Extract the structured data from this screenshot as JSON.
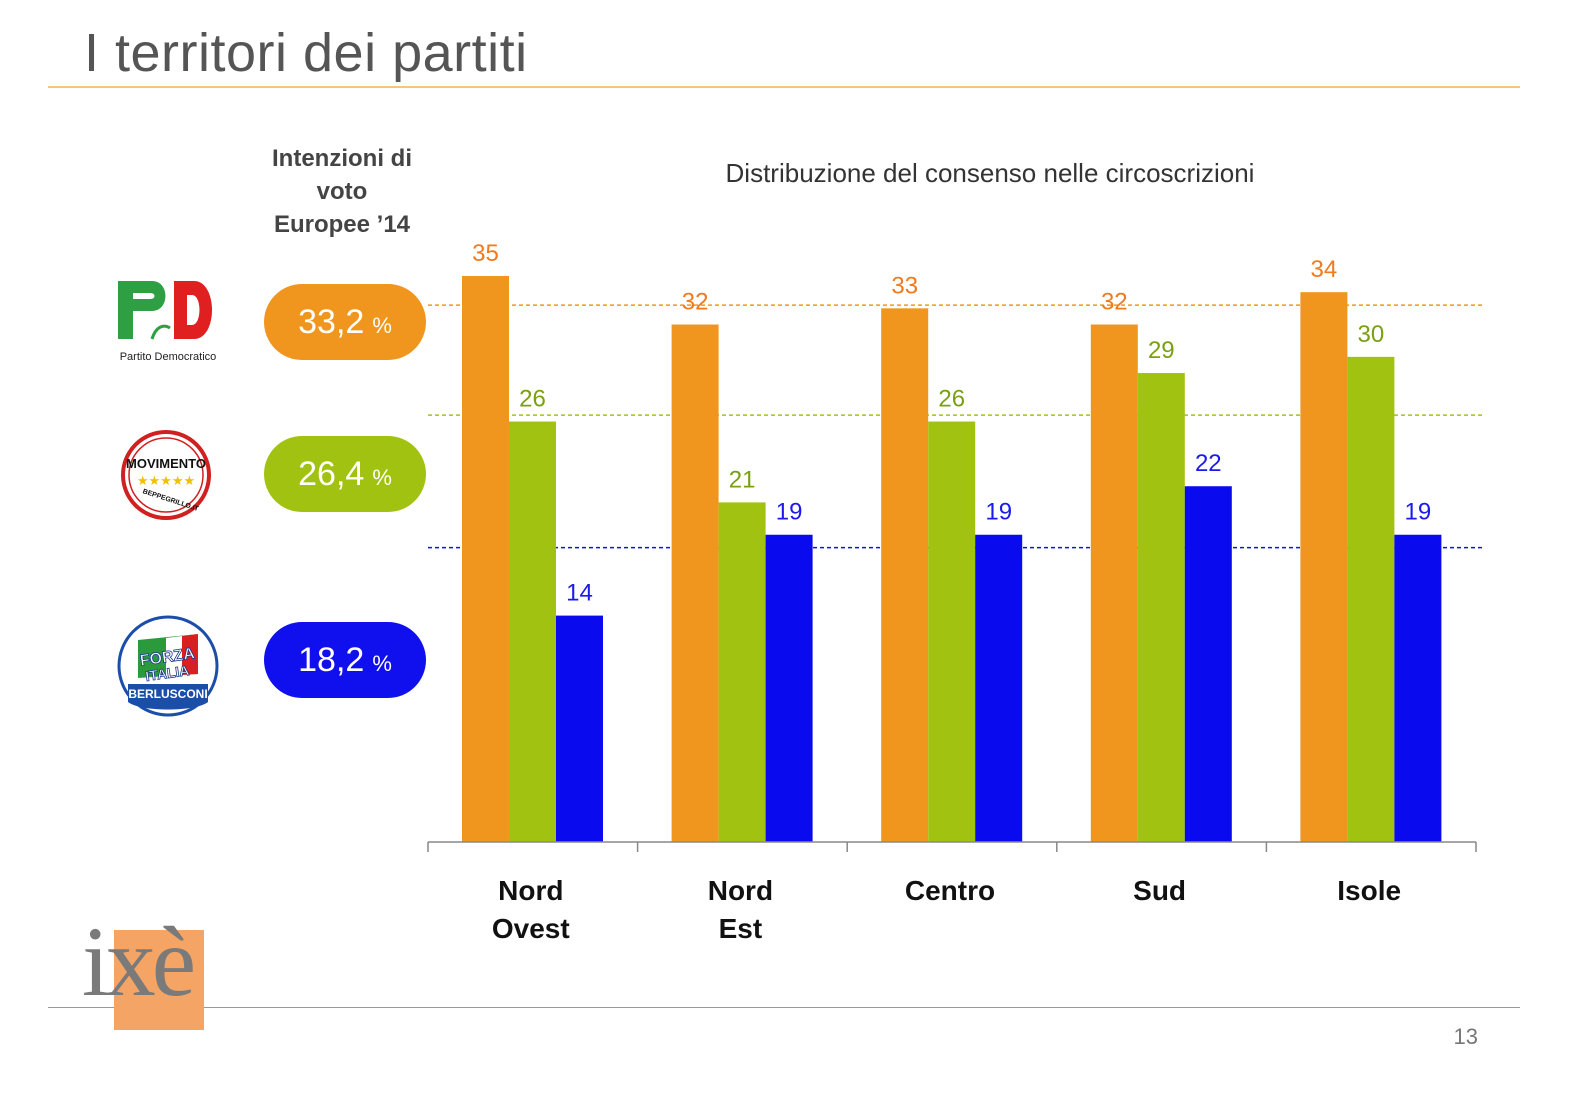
{
  "slide": {
    "title": "I territori dei partiti",
    "page_number": "13",
    "brand": "ixè"
  },
  "left_panel": {
    "heading_lines": [
      "Intenzioni di",
      "voto",
      "Europee ’14"
    ],
    "parties": [
      {
        "logo": "pd-logo",
        "logo_text": "Partito Democratico",
        "value": "33,2",
        "unit": "%",
        "color": "#f0961e"
      },
      {
        "logo": "m5s-logo",
        "logo_text": "MOVIMENTO BEPPEGRILLO.IT",
        "value": "26,4",
        "unit": "%",
        "color": "#a2c212"
      },
      {
        "logo": "fi-logo",
        "logo_text": "FORZA ITALIA BERLUSCONI",
        "value": "18,2",
        "unit": "%",
        "color": "#1010ee"
      }
    ]
  },
  "chart_data": {
    "type": "bar",
    "title": "Distribuzione del consenso nelle circoscrizioni",
    "categories": [
      [
        "Nord",
        "Ovest"
      ],
      [
        "Nord",
        "Est"
      ],
      [
        "Centro"
      ],
      [
        "Sud"
      ],
      [
        "Isole"
      ]
    ],
    "series": [
      {
        "values": [
          35,
          32,
          33,
          32,
          34
        ],
        "color": "#f0961e",
        "label_color": "#f07a1e"
      },
      {
        "values": [
          26,
          21,
          26,
          29,
          30
        ],
        "color": "#a2c212",
        "label_color": "#7aa012"
      },
      {
        "values": [
          14,
          19,
          19,
          22,
          19
        ],
        "color": "#0a0aee",
        "label_color": "#1a1aee"
      }
    ],
    "reference_lines": [
      {
        "value": 33.2,
        "color": "#f0961e"
      },
      {
        "value": 26.4,
        "color": "#a2c212"
      },
      {
        "value": 18.2,
        "color": "#1010ee"
      }
    ],
    "ylim": [
      0,
      35
    ],
    "grid": false,
    "legend": "none"
  }
}
